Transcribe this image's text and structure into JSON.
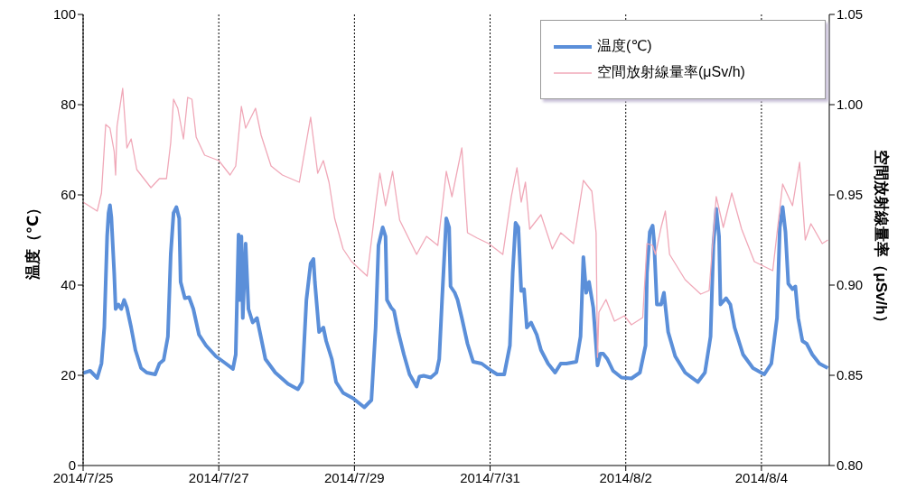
{
  "chart_data": {
    "type": "line",
    "ylabel": "温度（℃）",
    "y2label": "空間放射線量率（μSv/h）",
    "xlim": [
      "2014-07-25",
      "2014-08-05"
    ],
    "xticks": [
      {
        "value": "2014-07-25",
        "label": "2014/7/25"
      },
      {
        "value": "2014-07-27",
        "label": "2014/7/27"
      },
      {
        "value": "2014-07-29",
        "label": "2014/7/29"
      },
      {
        "value": "2014-07-31",
        "label": "2014/7/31"
      },
      {
        "value": "2014-08-02",
        "label": "2014/8/2"
      },
      {
        "value": "2014-08-04",
        "label": "2014/8/4"
      }
    ],
    "ylim": [
      0,
      100
    ],
    "yticks": [
      0,
      20,
      40,
      60,
      80,
      100
    ],
    "y2lim": [
      0.8,
      1.05
    ],
    "y2ticks": [
      {
        "value": 0.8,
        "label": "0.80"
      },
      {
        "value": 0.85,
        "label": "0.85"
      },
      {
        "value": 0.9,
        "label": "0.90"
      },
      {
        "value": 0.95,
        "label": "0.95"
      },
      {
        "value": 1.0,
        "label": "1.00"
      },
      {
        "value": 1.05,
        "label": "1.05"
      }
    ],
    "grid": true,
    "legend": "top right",
    "marker": "none",
    "line_style": "solid",
    "series": [
      {
        "name": "温度(℃)",
        "color": "#5b8fd9",
        "x": [
          "2014-07-25T00:00",
          "2014-07-25T02:30",
          "2014-07-25T05:00",
          "2014-07-25T06:30",
          "2014-07-25T07:30",
          "2014-07-25T08:30",
          "2014-07-25T09:00",
          "2014-07-25T09:30",
          "2014-07-25T10:00",
          "2014-07-25T11:00",
          "2014-07-25T11:30",
          "2014-07-25T12:30",
          "2014-07-25T13:30",
          "2014-07-25T14:30",
          "2014-07-25T15:30",
          "2014-07-25T17:00",
          "2014-07-25T18:30",
          "2014-07-25T20:30",
          "2014-07-25T22:30",
          "2014-07-26T01:30",
          "2014-07-26T03:00",
          "2014-07-26T04:30",
          "2014-07-26T06:00",
          "2014-07-26T07:00",
          "2014-07-26T08:00",
          "2014-07-26T09:00",
          "2014-07-26T10:00",
          "2014-07-26T10:30",
          "2014-07-26T12:00",
          "2014-07-26T13:30",
          "2014-07-26T15:00",
          "2014-07-26T17:00",
          "2014-07-26T19:30",
          "2014-07-26T23:00",
          "2014-07-27T02:30",
          "2014-07-27T05:00",
          "2014-07-27T06:00",
          "2014-07-27T07:00",
          "2014-07-27T07:30",
          "2014-07-27T08:00",
          "2014-07-27T08:30",
          "2014-07-27T09:30",
          "2014-07-27T10:30",
          "2014-07-27T12:00",
          "2014-07-27T13:30",
          "2014-07-27T15:00",
          "2014-07-27T16:30",
          "2014-07-27T20:00",
          "2014-07-28T00:30",
          "2014-07-28T04:00",
          "2014-07-28T05:30",
          "2014-07-28T07:00",
          "2014-07-28T08:30",
          "2014-07-28T09:30",
          "2014-07-28T10:00",
          "2014-07-28T11:30",
          "2014-07-28T13:00",
          "2014-07-28T14:00",
          "2014-07-28T16:00",
          "2014-07-28T17:30",
          "2014-07-28T20:00",
          "2014-07-28T23:30",
          "2014-07-29T03:30",
          "2014-07-29T06:00",
          "2014-07-29T07:30",
          "2014-07-29T08:30",
          "2014-07-29T10:00",
          "2014-07-29T11:00",
          "2014-07-29T11:30",
          "2014-07-29T13:00",
          "2014-07-29T14:00",
          "2014-07-29T15:30",
          "2014-07-29T17:30",
          "2014-07-29T19:30",
          "2014-07-29T22:00",
          "2014-07-29T23:00",
          "2014-07-30T00:30",
          "2014-07-30T03:00",
          "2014-07-30T05:00",
          "2014-07-30T06:00",
          "2014-07-30T07:00",
          "2014-07-30T08:30",
          "2014-07-30T09:30",
          "2014-07-30T10:00",
          "2014-07-30T11:30",
          "2014-07-30T12:30",
          "2014-07-30T14:00",
          "2014-07-30T16:00",
          "2014-07-30T18:00",
          "2014-07-30T21:00",
          "2014-07-31T00:30",
          "2014-07-31T02:30",
          "2014-07-31T05:00",
          "2014-07-31T07:00",
          "2014-07-31T08:00",
          "2014-07-31T09:00",
          "2014-07-31T10:00",
          "2014-07-31T11:00",
          "2014-07-31T12:00",
          "2014-07-31T13:00",
          "2014-07-31T14:30",
          "2014-07-31T16:30",
          "2014-07-31T18:00",
          "2014-07-31T20:30",
          "2014-07-31T23:00",
          "2014-08-01T01:00",
          "2014-08-01T03:00",
          "2014-08-01T06:30",
          "2014-08-01T08:00",
          "2014-08-01T09:00",
          "2014-08-01T10:00",
          "2014-08-01T11:00",
          "2014-08-01T12:30",
          "2014-08-01T13:30",
          "2014-08-01T14:00",
          "2014-08-01T15:00",
          "2014-08-01T16:00",
          "2014-08-01T17:30",
          "2014-08-01T19:30",
          "2014-08-01T22:30",
          "2014-08-02T02:00",
          "2014-08-02T05:00",
          "2014-08-02T07:00",
          "2014-08-02T07:30",
          "2014-08-02T08:30",
          "2014-08-02T09:30",
          "2014-08-02T10:00",
          "2014-08-02T11:00",
          "2014-08-02T12:30",
          "2014-08-02T13:30",
          "2014-08-02T15:00",
          "2014-08-02T17:30",
          "2014-08-02T21:00",
          "2014-08-03T01:30",
          "2014-08-03T04:00",
          "2014-08-03T06:00",
          "2014-08-03T07:00",
          "2014-08-03T08:00",
          "2014-08-03T09:00",
          "2014-08-03T09:30",
          "2014-08-03T11:30",
          "2014-08-03T13:00",
          "2014-08-03T14:30",
          "2014-08-03T17:30",
          "2014-08-03T21:00",
          "2014-08-04T01:00",
          "2014-08-04T03:30",
          "2014-08-04T05:30",
          "2014-08-04T06:30",
          "2014-08-04T07:30",
          "2014-08-04T08:30",
          "2014-08-04T09:30",
          "2014-08-04T11:00",
          "2014-08-04T12:00",
          "2014-08-04T13:00",
          "2014-08-04T14:30",
          "2014-08-04T16:00",
          "2014-08-04T18:00",
          "2014-08-04T20:30",
          "2014-08-04T23:30"
        ],
        "values": [
          20.5,
          21,
          19.4,
          22.6,
          30.6,
          50.8,
          56,
          57.7,
          55,
          42.7,
          34.7,
          35.7,
          34.7,
          36.7,
          35,
          30.6,
          25.6,
          21.6,
          20.6,
          20.2,
          22.6,
          23.4,
          28.6,
          46.8,
          56,
          57.3,
          54.8,
          40.7,
          37.1,
          37.3,
          34.7,
          29,
          26.6,
          24.2,
          22.6,
          21.4,
          24.6,
          51.2,
          36.7,
          50.8,
          32.7,
          49.2,
          34.7,
          31.7,
          32.7,
          28.2,
          23.6,
          20.6,
          18.1,
          16.9,
          18.5,
          36.7,
          44.8,
          45.8,
          40.7,
          29.6,
          30.6,
          27.6,
          23.6,
          18.5,
          16.1,
          14.9,
          12.9,
          14.5,
          30.6,
          48.8,
          52.8,
          50.8,
          36.7,
          35,
          34.3,
          29.6,
          24.6,
          20.2,
          17.5,
          19.7,
          19.9,
          19.5,
          20.6,
          23.6,
          36.7,
          54.8,
          52.8,
          39.7,
          38.3,
          36.7,
          32.7,
          27,
          23,
          22.6,
          21,
          20.2,
          20.2,
          26.6,
          42.7,
          53.8,
          52.8,
          38.7,
          39.1,
          30.6,
          31.7,
          29,
          25.6,
          22.6,
          20.6,
          22.6,
          22.6,
          23,
          28.6,
          46.2,
          38.3,
          40.7,
          35,
          26.6,
          22.2,
          24.8,
          24.8,
          23.6,
          21,
          19.5,
          19.3,
          20.6,
          26.6,
          42.7,
          51.8,
          53.2,
          49.8,
          35.7,
          35.7,
          38.3,
          29.6,
          24.2,
          20.6,
          18.5,
          20.6,
          28.6,
          48.8,
          56.9,
          50.8,
          35.7,
          37.1,
          35.7,
          30.6,
          24.6,
          21.6,
          20.2,
          22.6,
          32.7,
          52.8,
          57.3,
          51.8,
          40.3,
          39.1,
          39.7,
          32.7,
          27.6,
          27,
          24.6,
          22.6,
          21.6
        ]
      },
      {
        "name": "空間放射線量率(μSv/h)",
        "color": "#f0a8b8",
        "axis": "y2",
        "x": [
          "2014-07-25T00:00",
          "2014-07-25T05:00",
          "2014-07-25T06:30",
          "2014-07-25T08:00",
          "2014-07-25T09:30",
          "2014-07-25T11:00",
          "2014-07-25T11:30",
          "2014-07-25T12:00",
          "2014-07-25T14:00",
          "2014-07-25T15:30",
          "2014-07-25T17:00",
          "2014-07-25T19:00",
          "2014-07-26T00:00",
          "2014-07-26T03:00",
          "2014-07-26T05:30",
          "2014-07-26T07:00",
          "2014-07-26T08:00",
          "2014-07-26T09:30",
          "2014-07-26T11:30",
          "2014-07-26T13:00",
          "2014-07-26T14:30",
          "2014-07-26T16:00",
          "2014-07-26T19:00",
          "2014-07-27T00:00",
          "2014-07-27T04:00",
          "2014-07-27T06:00",
          "2014-07-27T08:00",
          "2014-07-27T09:30",
          "2014-07-27T13:00",
          "2014-07-27T15:00",
          "2014-07-27T18:30",
          "2014-07-27T22:30",
          "2014-07-28T04:30",
          "2014-07-28T08:30",
          "2014-07-28T11:00",
          "2014-07-28T13:00",
          "2014-07-28T15:00",
          "2014-07-28T17:00",
          "2014-07-28T20:00",
          "2014-07-28T23:00",
          "2014-07-29T04:30",
          "2014-07-29T07:30",
          "2014-07-29T09:00",
          "2014-07-29T11:00",
          "2014-07-29T13:30",
          "2014-07-29T16:00",
          "2014-07-29T22:00",
          "2014-07-30T01:30",
          "2014-07-30T05:30",
          "2014-07-30T08:30",
          "2014-07-30T10:30",
          "2014-07-30T14:00",
          "2014-07-30T16:00",
          "2014-07-30T19:30",
          "2014-07-30T23:30",
          "2014-07-31T04:30",
          "2014-07-31T07:30",
          "2014-07-31T09:30",
          "2014-07-31T11:00",
          "2014-07-31T12:30",
          "2014-07-31T14:00",
          "2014-07-31T18:00",
          "2014-07-31T22:00",
          "2014-08-01T01:00",
          "2014-08-01T05:30",
          "2014-08-01T09:00",
          "2014-08-01T12:00",
          "2014-08-01T13:30",
          "2014-08-01T14:00",
          "2014-08-01T14:30",
          "2014-08-01T17:00",
          "2014-08-01T20:00",
          "2014-08-01T23:30",
          "2014-08-02T02:00",
          "2014-08-02T06:00",
          "2014-08-02T07:30",
          "2014-08-02T09:30",
          "2014-08-02T10:30",
          "2014-08-02T12:30",
          "2014-08-02T14:00",
          "2014-08-02T15:30",
          "2014-08-02T21:00",
          "2014-08-03T02:30",
          "2014-08-03T05:30",
          "2014-08-03T08:00",
          "2014-08-03T10:30",
          "2014-08-03T13:30",
          "2014-08-03T17:00",
          "2014-08-03T21:30",
          "2014-08-04T04:00",
          "2014-08-04T07:30",
          "2014-08-04T11:00",
          "2014-08-04T13:30",
          "2014-08-04T15:30",
          "2014-08-04T17:30",
          "2014-08-04T21:30",
          "2014-08-04T23:30"
        ],
        "values": [
          0.946,
          0.941,
          0.951,
          0.989,
          0.987,
          0.974,
          0.961,
          0.988,
          1.009,
          0.976,
          0.981,
          0.964,
          0.954,
          0.959,
          0.959,
          0.979,
          1.003,
          0.998,
          0.981,
          1.004,
          1.003,
          0.982,
          0.972,
          0.969,
          0.961,
          0.966,
          0.999,
          0.987,
          0.998,
          0.983,
          0.966,
          0.961,
          0.957,
          0.993,
          0.962,
          0.969,
          0.957,
          0.937,
          0.92,
          0.913,
          0.905,
          0.944,
          0.962,
          0.944,
          0.963,
          0.936,
          0.917,
          0.927,
          0.922,
          0.963,
          0.949,
          0.976,
          0.929,
          0.926,
          0.923,
          0.917,
          0.949,
          0.965,
          0.946,
          0.957,
          0.931,
          0.939,
          0.92,
          0.929,
          0.923,
          0.958,
          0.952,
          0.929,
          0.86,
          0.885,
          0.892,
          0.88,
          0.883,
          0.878,
          0.882,
          0.923,
          0.922,
          0.917,
          0.932,
          0.941,
          0.917,
          0.903,
          0.895,
          0.897,
          0.949,
          0.932,
          0.951,
          0.931,
          0.913,
          0.908,
          0.956,
          0.944,
          0.968,
          0.925,
          0.934,
          0.923,
          0.925
        ]
      }
    ]
  }
}
